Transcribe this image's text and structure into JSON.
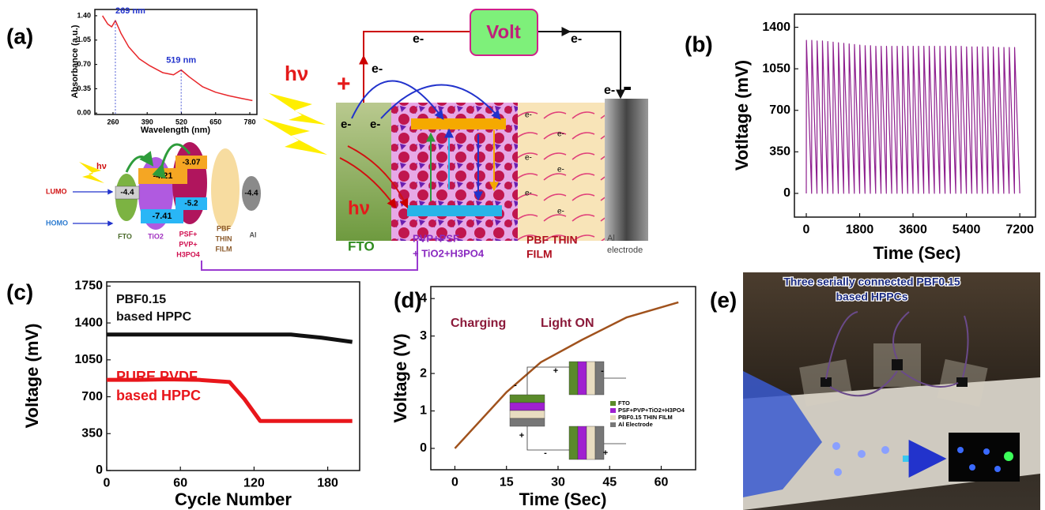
{
  "panel_labels": [
    "(a)",
    "(b)",
    "(c)",
    "(d)",
    "(e)"
  ],
  "diagram": {
    "cell": {
      "photon": "hν",
      "plus": "+",
      "minus": "-",
      "meter": "Volt",
      "electron": "e-",
      "photon_inner": "hν",
      "layers": [
        {
          "lines": [
            "FTO"
          ]
        },
        {
          "lines": [
            "PVP+PSF",
            "+ TiO2+H3PO4"
          ]
        },
        {
          "lines": [
            "PBF THIN",
            "FILM"
          ]
        },
        {
          "lines": [
            "Al",
            "electrode"
          ]
        }
      ]
    },
    "energy": {
      "photon": "hν",
      "lumo": "LUMO",
      "homo": "HOMO",
      "levels": [
        "-4.4",
        "-4.21",
        "-7.41",
        "-3.07",
        "-5.2",
        "-4.4"
      ],
      "materials": [
        {
          "lines": [
            "FTO"
          ]
        },
        {
          "lines": [
            "TiO2"
          ]
        },
        {
          "lines": [
            "PSF+",
            "PVP+",
            "H3PO4"
          ]
        },
        {
          "lines": [
            "PBF",
            "THIN",
            "FILM"
          ]
        },
        {
          "lines": [
            "Al"
          ]
        }
      ]
    }
  },
  "photo": {
    "caption": [
      "Three serially connected PBF0.15",
      "based HPPCs"
    ]
  },
  "chart_data": [
    {
      "type": "line",
      "xlabel": "Wavelength (nm)",
      "ylabel": "Absorbance (a.u.)",
      "x": [
        220,
        240,
        255,
        269,
        290,
        320,
        360,
        400,
        450,
        490,
        519,
        550,
        600,
        650,
        700,
        750,
        790
      ],
      "series": [
        {
          "color": "#e8262a",
          "values": [
            1.4,
            1.28,
            1.24,
            1.33,
            1.15,
            0.95,
            0.78,
            0.68,
            0.58,
            0.55,
            0.62,
            0.52,
            0.38,
            0.3,
            0.25,
            0.21,
            0.18
          ]
        }
      ],
      "xlim": [
        191,
        807
      ],
      "ylim": [
        -0.02,
        1.49
      ],
      "xticks": [
        260,
        390,
        520,
        650,
        780
      ],
      "yticks": [
        {
          "value": 0,
          "label": "0.00"
        },
        {
          "value": 0.35,
          "label": "0.35"
        },
        {
          "value": 0.7,
          "label": "0.70"
        },
        {
          "value": 1.05,
          "label": "1.05"
        },
        {
          "value": 1.4,
          "label": "1.40"
        }
      ],
      "annotations": [
        {
          "text": "269 nm",
          "x": 269,
          "y": 1.33,
          "color": "#2233cc"
        },
        {
          "text": "519 nm",
          "x": 519,
          "y": 0.62,
          "color": "#2233cc"
        }
      ]
    },
    {
      "type": "line",
      "xlabel": "Time (Sec)",
      "ylabel": "Votltage (mV)",
      "x": [
        0,
        5,
        180,
        185,
        360,
        365,
        540,
        545,
        720,
        725,
        900,
        905,
        1080,
        1085,
        1260,
        1265,
        1440,
        1445,
        1620,
        1625,
        1800,
        1805,
        1980,
        1985,
        2160,
        2165,
        2340,
        2345,
        2520,
        2525,
        2700,
        2705,
        2880,
        2885,
        3060,
        3065,
        3240,
        3245,
        3420,
        3425,
        3600,
        3605,
        3780,
        3785,
        3960,
        3965,
        4140,
        4145,
        4320,
        4325,
        4500,
        4505,
        4680,
        4685,
        4860,
        4865,
        5040,
        5045,
        5220,
        5225,
        5400,
        5405,
        5580,
        5585,
        5760,
        5765,
        5940,
        5945,
        6120,
        6125,
        6300,
        6305,
        6480,
        6485,
        6660,
        6665,
        6840,
        6845,
        7020,
        7025,
        7200
      ],
      "series": [
        {
          "color": "#8e1f8e",
          "values": [
            0,
            1290,
            0,
            1290,
            0,
            1285,
            0,
            1285,
            0,
            1280,
            0,
            1275,
            0,
            1270,
            0,
            1265,
            0,
            1260,
            0,
            1255,
            0,
            1250,
            0,
            1245,
            0,
            1245,
            0,
            1240,
            0,
            1240,
            0,
            1240,
            0,
            1240,
            0,
            1240,
            0,
            1240,
            0,
            1240,
            0,
            1240,
            0,
            1240,
            0,
            1240,
            0,
            1240,
            0,
            1240,
            0,
            1240,
            0,
            1240,
            0,
            1240,
            0,
            1240,
            0,
            1240,
            0,
            1235,
            0,
            1235,
            0,
            1235,
            0,
            1235,
            0,
            1235,
            0,
            1235,
            0,
            1230,
            0,
            1230,
            0,
            1230,
            0,
            1230,
            0
          ]
        }
      ],
      "xlim": [
        -400,
        7730
      ],
      "ylim": [
        -200,
        1510
      ],
      "xticks": [
        0,
        1800,
        3600,
        5400,
        7200
      ],
      "yticks": [
        0,
        350,
        700,
        1050,
        1400
      ]
    },
    {
      "type": "line",
      "xlabel": "Cycle Number",
      "ylabel": "Voltage (mV)",
      "x": [
        0,
        25,
        50,
        75,
        100,
        112,
        125,
        150,
        175,
        200
      ],
      "series": [
        {
          "color": "#111111",
          "values": [
            1290,
            1290,
            1290,
            1290,
            1290,
            1290,
            1290,
            1290,
            1260,
            1220
          ]
        },
        {
          "color": "#e8161b",
          "values": [
            860,
            860,
            865,
            860,
            840,
            680,
            470,
            470,
            470,
            470
          ]
        }
      ],
      "xlim": [
        0,
        206
      ],
      "ylim": [
        0,
        1790
      ],
      "xticks": [
        0,
        60,
        120,
        180
      ],
      "yticks": [
        0,
        350,
        700,
        1050,
        1400,
        1750
      ],
      "annotations": [
        {
          "lines": [
            "PBF0.15",
            "based HPPC"
          ],
          "color": "#111111"
        },
        {
          "lines": [
            "PURE PVDF",
            "based HPPC"
          ],
          "color": "#e8161b"
        }
      ]
    },
    {
      "type": "line",
      "xlabel": "Time (Sec)",
      "ylabel": "Voltage (V)",
      "x": [
        0,
        15,
        25,
        37,
        50,
        65
      ],
      "series": [
        {
          "color": "#a0521d",
          "values": [
            0,
            1.5,
            2.3,
            2.9,
            3.5,
            3.9
          ]
        }
      ],
      "xlim": [
        -7,
        70
      ],
      "ylim": [
        -0.57,
        4.32
      ],
      "xticks": [
        0,
        15,
        30,
        45,
        60
      ],
      "yticks": [
        0,
        1,
        2,
        3,
        4
      ],
      "annotations": [
        {
          "lines": [
            "Charging"
          ],
          "color": "#8b1a3a"
        },
        {
          "lines": [
            "Light ON"
          ],
          "color": "#8b1a3a"
        }
      ],
      "inset": {
        "legend": [
          {
            "name": "FTO",
            "color": "#5a8a2a"
          },
          {
            "name": "PSF+PVP+TiO2+H3PO4",
            "color": "#a020d0"
          },
          {
            "name": "PBF0.15 THIN FILM",
            "color": "#e8dcc0"
          },
          {
            "name": "Al Electrode",
            "color": "#777777"
          }
        ],
        "signs": [
          "+",
          "-"
        ]
      }
    }
  ]
}
